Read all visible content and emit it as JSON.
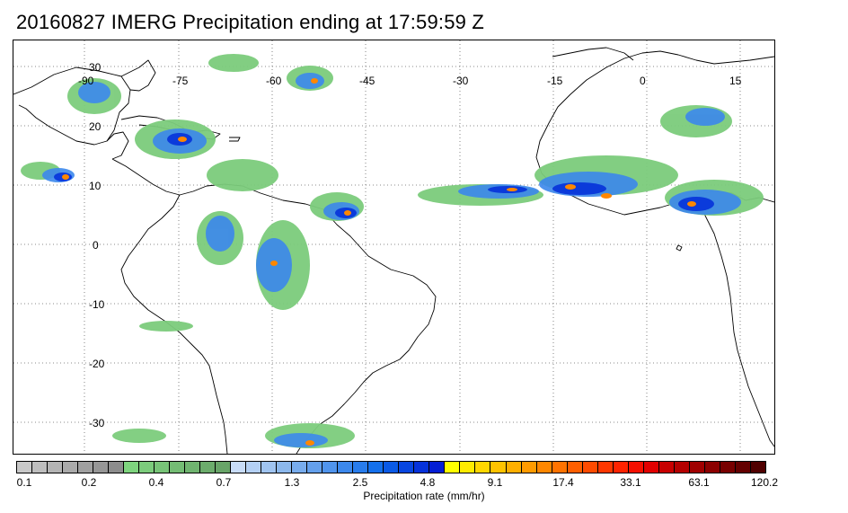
{
  "title": "20160827 IMERG Precipitation ending at 17:59:59 Z",
  "map": {
    "lon_labels": [
      "-90",
      "-75",
      "-60",
      "-45",
      "-30",
      "-15",
      "0",
      "15"
    ],
    "lat_labels": [
      "30",
      "20",
      "10",
      "0",
      "-10",
      "-20",
      "-30"
    ],
    "grid": "dotted",
    "coastlines": true
  },
  "colorbar": {
    "title": "Precipitation rate (mm/hr)",
    "tick_labels": [
      "0.1",
      "0.2",
      "0.4",
      "0.7",
      "1.3",
      "2.5",
      "4.8",
      "9.1",
      "17.4",
      "33.1",
      "63.1",
      "120.2"
    ],
    "colors": [
      "#c8c8c8",
      "#bebebe",
      "#b4b4b4",
      "#aaaaaa",
      "#a0a0a0",
      "#969696",
      "#8c8c8c",
      "#7ed47e",
      "#7ccc7c",
      "#78c478",
      "#74bc74",
      "#70b470",
      "#6cac6c",
      "#68a468",
      "#c8dcf8",
      "#b4d0f4",
      "#a0c4f0",
      "#8cb8ec",
      "#78acec",
      "#64a0ec",
      "#5094ec",
      "#3c88ec",
      "#287cec",
      "#1470ec",
      "#0a5ae6",
      "#0846e0",
      "#0632da",
      "#041ed4",
      "#ffff00",
      "#ffeb00",
      "#ffd700",
      "#ffc300",
      "#ffaf00",
      "#ff9b00",
      "#ff8700",
      "#ff7300",
      "#ff5f00",
      "#ff4b00",
      "#ff3700",
      "#ff2300",
      "#f50f00",
      "#e10000",
      "#c80000",
      "#b40000",
      "#a00000",
      "#8c0000",
      "#780000",
      "#640000",
      "#500000"
    ]
  }
}
